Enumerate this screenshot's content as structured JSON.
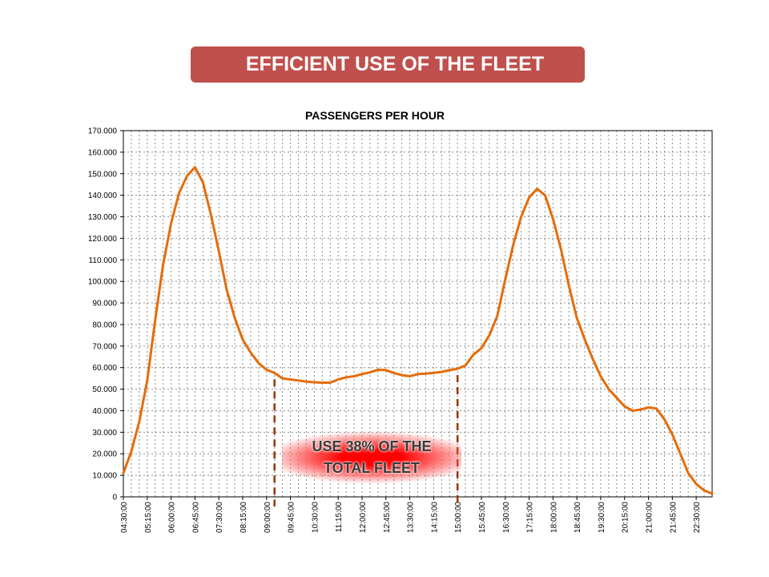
{
  "banner": {
    "title": "EFFICIENT USE OF THE FLEET"
  },
  "callout": {
    "line1": "USE 38% OF THE",
    "line2": "TOTAL FLEET"
  },
  "colors": {
    "banner": "#c0504d",
    "series": "#e46c0a",
    "marker": "#993300",
    "callout": "#ff0000"
  },
  "chart_data": {
    "type": "line",
    "title": "PASSENGERS PER HOUR",
    "xlabel": "",
    "ylabel": "",
    "ylim": [
      0,
      170000
    ],
    "grid": true,
    "y_ticks": [
      "0",
      "10.000",
      "20.000",
      "30.000",
      "40.000",
      "50.000",
      "60.000",
      "70.000",
      "80.000",
      "90.000",
      "100.000",
      "110.000",
      "120.000",
      "130.000",
      "140.000",
      "150.000",
      "160.000",
      "170.000"
    ],
    "x_tick_labels": [
      "04:30:00",
      "05:15:00",
      "06:00:00",
      "06:45:00",
      "07:30:00",
      "08:15:00",
      "09:00:00",
      "09:45:00",
      "10:30:00",
      "11:15:00",
      "12:00:00",
      "12:45:00",
      "13:30:00",
      "14:15:00",
      "15:00:00",
      "15:45:00",
      "16:30:00",
      "17:15:00",
      "18:00:00",
      "18:45:00",
      "19:30:00",
      "20:15:00",
      "21:00:00",
      "21:45:00",
      "22:30:00"
    ],
    "x": [
      "04:30",
      "04:45",
      "05:00",
      "05:15",
      "05:30",
      "05:45",
      "06:00",
      "06:15",
      "06:30",
      "06:45",
      "07:00",
      "07:15",
      "07:30",
      "07:45",
      "08:00",
      "08:15",
      "08:30",
      "08:45",
      "09:00",
      "09:15",
      "09:30",
      "09:45",
      "10:00",
      "10:15",
      "10:30",
      "10:45",
      "11:00",
      "11:15",
      "11:30",
      "11:45",
      "12:00",
      "12:15",
      "12:30",
      "12:45",
      "13:00",
      "13:15",
      "13:30",
      "13:45",
      "14:00",
      "14:15",
      "14:30",
      "14:45",
      "15:00",
      "15:15",
      "15:30",
      "15:45",
      "16:00",
      "16:15",
      "16:30",
      "16:45",
      "17:00",
      "17:15",
      "17:30",
      "17:45",
      "18:00",
      "18:15",
      "18:30",
      "18:45",
      "19:00",
      "19:15",
      "19:30",
      "19:45",
      "20:00",
      "20:15",
      "20:30",
      "20:45",
      "21:00",
      "21:15",
      "21:30",
      "21:45",
      "22:00",
      "22:15",
      "22:30",
      "22:45",
      "23:00"
    ],
    "series": [
      {
        "values": [
          11000,
          21000,
          35000,
          54000,
          82000,
          108000,
          127000,
          141000,
          149000,
          153000,
          146000,
          131000,
          114000,
          96000,
          83000,
          73000,
          67000,
          62000,
          59000,
          57500,
          55000,
          54500,
          54000,
          53500,
          53200,
          53000,
          53000,
          54500,
          55500,
          56000,
          57000,
          57800,
          59000,
          58800,
          57500,
          56500,
          56000,
          57000,
          57200,
          57600,
          58000,
          58800,
          59500,
          61000,
          66000,
          69000,
          75000,
          84000,
          101000,
          117000,
          130000,
          139000,
          143000,
          140000,
          129000,
          115000,
          98000,
          83000,
          73000,
          64000,
          56000,
          50000,
          46000,
          42000,
          40000,
          40500,
          41500,
          41000,
          36000,
          29000,
          20000,
          11000,
          6000,
          3000,
          1500
        ]
      }
    ],
    "annotations": [
      {
        "type": "vline",
        "x": "09:15"
      },
      {
        "type": "vline",
        "x": "15:00"
      }
    ]
  }
}
